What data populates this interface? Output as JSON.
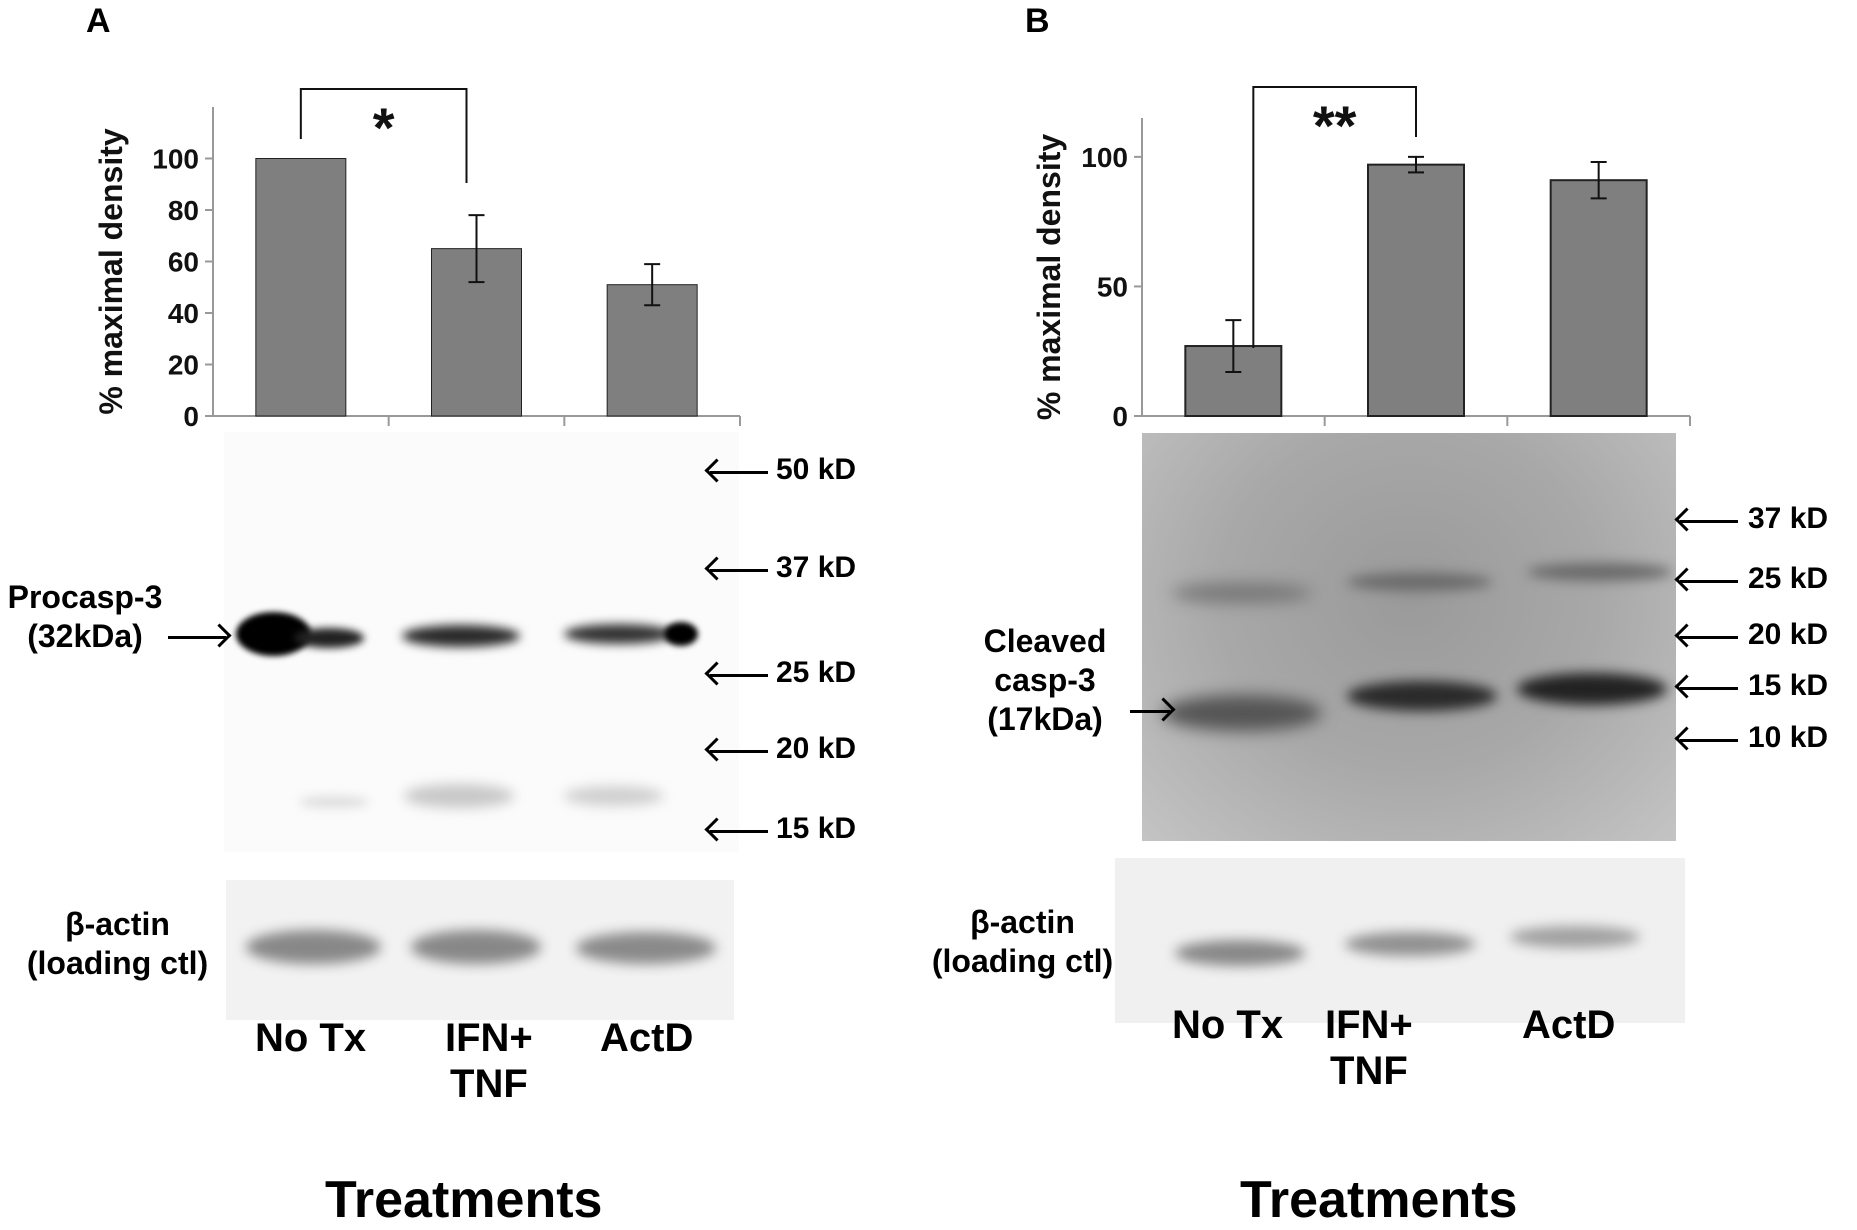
{
  "chart_data": [
    {
      "panel": "A",
      "type": "bar",
      "categories": [
        "No Tx",
        "IFN+ TNF",
        "ActD"
      ],
      "values": [
        100,
        65,
        51
      ],
      "errors": [
        0,
        13,
        8
      ],
      "ylabel": "% maximal density",
      "xlabel": "Treatments",
      "ylim": [
        0,
        120
      ],
      "yticks": [
        0,
        20,
        40,
        60,
        80,
        100
      ],
      "significance": {
        "from": 0,
        "to": 1,
        "label": "*"
      },
      "bar_color": "#7f7f7f"
    },
    {
      "panel": "B",
      "type": "bar",
      "categories": [
        "No Tx",
        "IFN+ TNF",
        "ActD"
      ],
      "values": [
        27,
        97,
        91
      ],
      "errors": [
        10,
        3,
        7
      ],
      "ylabel": "% maximal density",
      "xlabel": "Treatments",
      "ylim": [
        0,
        115
      ],
      "yticks": [
        0,
        50,
        100
      ],
      "significance": {
        "from": 0,
        "to": 1,
        "label": "**"
      },
      "bar_color": "#7f7f7f"
    }
  ],
  "panelA": {
    "letter": "A",
    "band_label_1": "Procasp-3",
    "band_label_2": "(32kDa)",
    "markers": [
      "50 kD",
      "37 kD",
      "25 kD",
      "20 kD",
      "15 kD"
    ],
    "actin_1": "β-actin",
    "actin_2": "(loading ctl)",
    "lanes": [
      "No Tx",
      "IFN+",
      "TNF",
      "ActD"
    ],
    "treatments": "Treatments"
  },
  "panelB": {
    "letter": "B",
    "band_label_1": "Cleaved",
    "band_label_2": "casp-3",
    "band_label_3": "(17kDa)",
    "markers": [
      "37 kD",
      "25 kD",
      "20 kD",
      "15 kD",
      "10 kD"
    ],
    "actin_1": "β-actin",
    "actin_2": "(loading ctl)",
    "lanes": [
      "No Tx",
      "IFN+",
      "TNF",
      "ActD"
    ],
    "treatments": "Treatments"
  }
}
